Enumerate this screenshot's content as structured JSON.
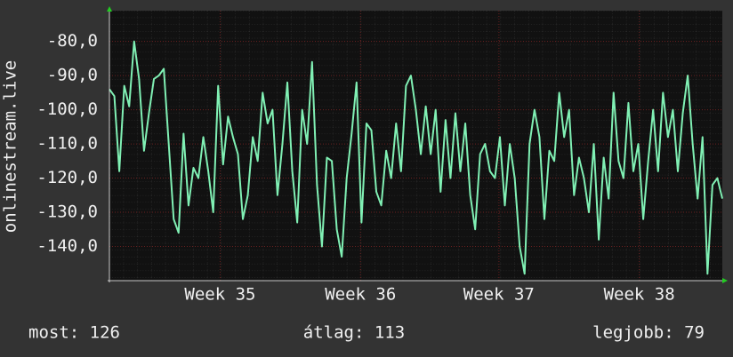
{
  "chart_data": {
    "type": "line",
    "ylabel": "onlinestream.live",
    "x": [
      0,
      0.25,
      0.5,
      0.75,
      1,
      1.25,
      1.5,
      1.75,
      2,
      2.25,
      2.5,
      2.75,
      3,
      3.25,
      3.5,
      3.75,
      4,
      4.25,
      4.5,
      4.75,
      5,
      5.25,
      5.5,
      5.75,
      6,
      6.25,
      6.5,
      6.75,
      7,
      7.25,
      7.5,
      7.75,
      8,
      8.25,
      8.5,
      8.75,
      9,
      9.25,
      9.5,
      9.75,
      10,
      10.25,
      10.5,
      10.75,
      11,
      11.25,
      11.5,
      11.75,
      12,
      12.25,
      12.5,
      12.75,
      13,
      13.25,
      13.5,
      13.75,
      14,
      14.25,
      14.5,
      14.75,
      15,
      15.25,
      15.5,
      15.75,
      16,
      16.25,
      16.5,
      16.75,
      17,
      17.25,
      17.5,
      17.75,
      18,
      18.25,
      18.5,
      18.75,
      19,
      19.25,
      19.5,
      19.75,
      20,
      20.25,
      20.5,
      20.75,
      21,
      21.25,
      21.5,
      21.75,
      22,
      22.25,
      22.5,
      22.75,
      23,
      23.25,
      23.5,
      23.75,
      24,
      24.25,
      24.5,
      24.75,
      25,
      25.25,
      25.5,
      25.75,
      26,
      26.25,
      26.5,
      26.75,
      27,
      27.25,
      27.5,
      27.75,
      28,
      28.25,
      28.5,
      28.75,
      29,
      29.25,
      29.5,
      29.75,
      30,
      30.25,
      30.5,
      30.75,
      31
    ],
    "series": [
      {
        "color": "#80f0b4",
        "values": [
          -94,
          -96,
          -118,
          -93,
          -99,
          -80,
          -91,
          -112,
          -101,
          -91,
          -90,
          -88,
          -110,
          -132,
          -136,
          -107,
          -128,
          -117,
          -120,
          -108,
          -118,
          -130,
          -93,
          -116,
          -102,
          -108,
          -113,
          -132,
          -125,
          -108,
          -115,
          -95,
          -104,
          -100,
          -125,
          -110,
          -92,
          -118,
          -133,
          -100,
          -110,
          -86,
          -122,
          -140,
          -114,
          -115,
          -135,
          -143,
          -120,
          -107,
          -92,
          -133,
          -104,
          -106,
          -124,
          -128,
          -112,
          -120,
          -104,
          -118,
          -93,
          -90,
          -100,
          -113,
          -99,
          -113,
          -100,
          -124,
          -103,
          -120,
          -101,
          -118,
          -104,
          -125,
          -135,
          -113,
          -110,
          -118,
          -120,
          -108,
          -128,
          -110,
          -120,
          -140,
          -148,
          -110,
          -100,
          -108,
          -132,
          -112,
          -115,
          -95,
          -108,
          -100,
          -125,
          -114,
          -120,
          -130,
          -110,
          -138,
          -114,
          -126,
          -95,
          -115,
          -120,
          -98,
          -118,
          -110,
          -132,
          -115,
          -100,
          -118,
          -95,
          -108,
          -100,
          -118,
          -101,
          -90,
          -110,
          -126,
          -108,
          -148,
          -122,
          -120,
          -126
        ]
      }
    ],
    "xlim": [
      0,
      31
    ],
    "xticks": [
      {
        "value": 5.6,
        "label": "Week 35"
      },
      {
        "value": 12.7,
        "label": "Week 36"
      },
      {
        "value": 19.7,
        "label": "Week 37"
      },
      {
        "value": 26.8,
        "label": "Week 38"
      }
    ],
    "ylim": [
      -150,
      -71
    ],
    "yticks": [
      {
        "value": -140,
        "label": "-140,0"
      },
      {
        "value": -130,
        "label": "-130,0"
      },
      {
        "value": -120,
        "label": "-120,0"
      },
      {
        "value": -110,
        "label": "-110,0"
      },
      {
        "value": -100,
        "label": "-100,0"
      },
      {
        "value": -90,
        "label": "-90,0"
      },
      {
        "value": -80,
        "label": "-80,0"
      }
    ],
    "grid": true,
    "footer": [
      "most: 126",
      "átlag: 113",
      "legjobb: 79"
    ]
  }
}
